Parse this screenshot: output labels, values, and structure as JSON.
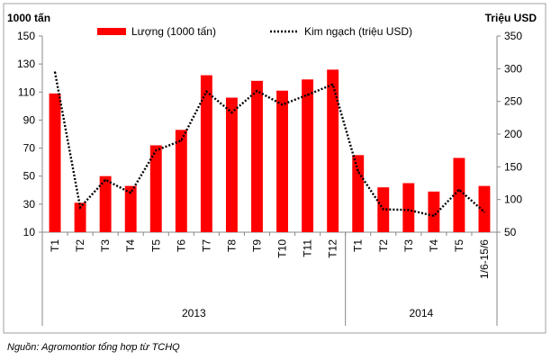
{
  "chart_data": {
    "type": "bar",
    "categories": [
      "T1",
      "T2",
      "T3",
      "T4",
      "T5",
      "T6",
      "T7",
      "T8",
      "T9",
      "T10",
      "T11",
      "T12",
      "T1",
      "T2",
      "T3",
      "T4",
      "T5",
      "1/6-15/6"
    ],
    "groups": [
      {
        "label": "2013",
        "count": 12
      },
      {
        "label": "2014",
        "count": 6
      }
    ],
    "series": [
      {
        "name": "Lượng (1000 tấn)",
        "kind": "bar",
        "axis": "left",
        "values": [
          109,
          31,
          50,
          43,
          72,
          83,
          122,
          106,
          118,
          111,
          119,
          126,
          65,
          42,
          45,
          39,
          63,
          43
        ]
      },
      {
        "name": "Kim ngạch (triệu USD)",
        "kind": "line",
        "style": "dotted",
        "axis": "right",
        "values": [
          295,
          88,
          130,
          110,
          175,
          190,
          265,
          233,
          266,
          245,
          260,
          276,
          143,
          85,
          84,
          75,
          115,
          81
        ]
      }
    ],
    "ylabel_left": "1000 tấn",
    "ylabel_right": "Triệu USD",
    "ylim_left": [
      10,
      150
    ],
    "yticks_left": [
      10,
      30,
      50,
      70,
      90,
      110,
      130,
      150
    ],
    "ylim_right": [
      50,
      350
    ],
    "yticks_right": [
      50,
      100,
      150,
      200,
      250,
      300,
      350
    ],
    "legend_position": "top",
    "grid": false,
    "colors": {
      "bar": "#ff0000",
      "line": "#000000"
    }
  },
  "source_note": "Nguồn: Agromontior tổng hợp từ TCHQ"
}
